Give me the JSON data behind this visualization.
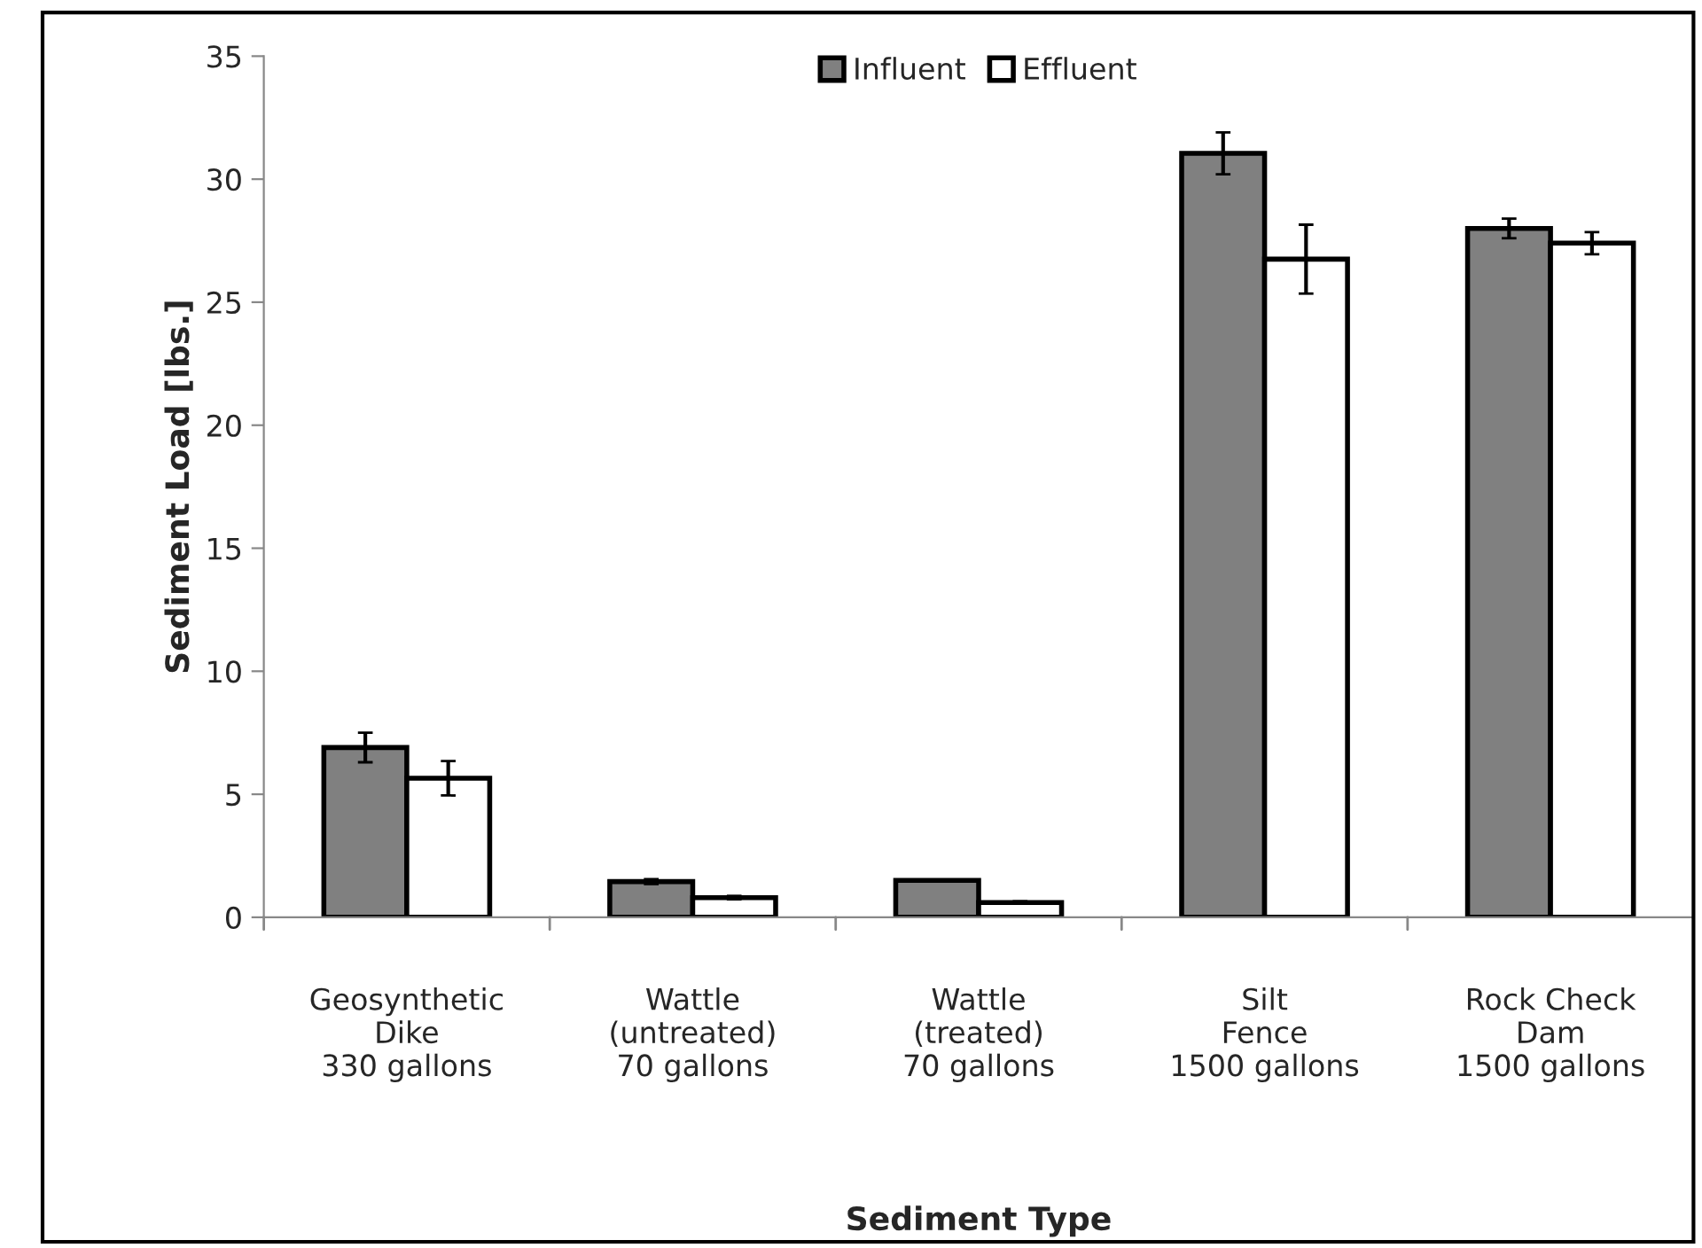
{
  "chart_data": {
    "type": "bar",
    "xlabel": "Sediment Type",
    "ylabel": "Sediment Load [lbs.]",
    "categories": [
      "Geosynthetic\nDike\n330 gallons",
      "Wattle\n(untreated)\n70 gallons",
      "Wattle\n(treated)\n70 gallons",
      "Silt\nFence\n1500 gallons",
      "Rock Check\nDam\n1500 gallons"
    ],
    "series": [
      {
        "name": "Influent",
        "color": "#808080",
        "values": [
          6.9,
          1.45,
          1.5,
          31.05,
          28.0
        ],
        "errors": [
          0.6,
          0.1,
          null,
          0.85,
          0.4
        ]
      },
      {
        "name": "Effluent",
        "color": "#ffffff",
        "values": [
          5.65,
          0.8,
          0.6,
          26.75,
          27.4
        ],
        "errors": [
          0.7,
          0.07,
          0.05,
          1.4,
          0.45
        ]
      }
    ],
    "ylim": [
      0,
      35
    ],
    "yticks": [
      0,
      5,
      10,
      15,
      20,
      25,
      30,
      35
    ],
    "grid": false,
    "legend": "top"
  }
}
